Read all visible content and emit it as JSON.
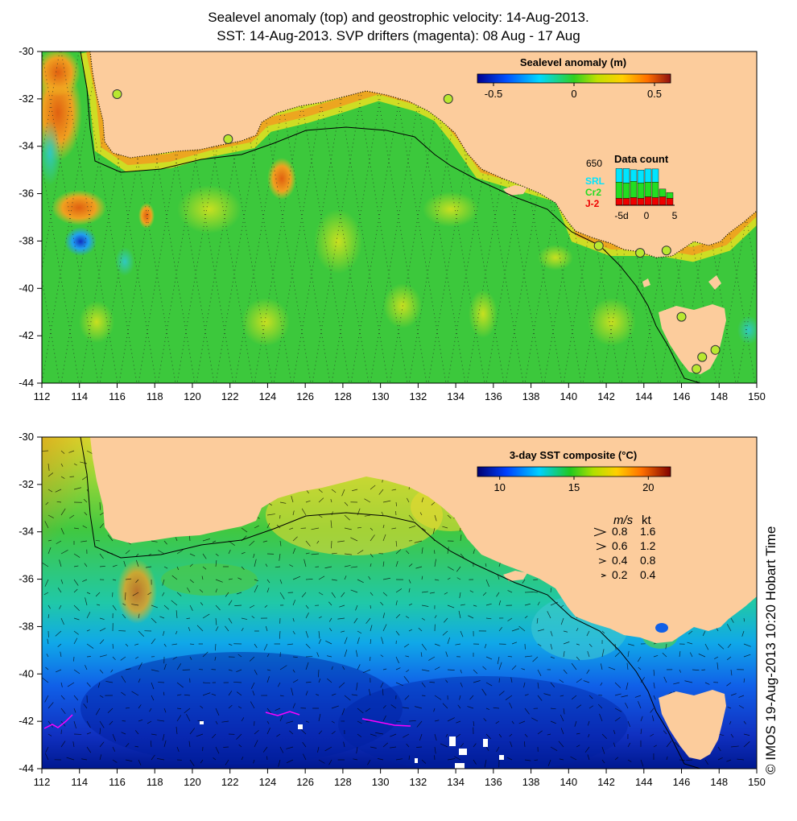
{
  "titles": {
    "line1": "Sealevel anomaly (top) and geostrophic velocity: 14-Aug-2013.",
    "line2": "SST: 14-Aug-2013. SVP drifters (magenta): 08 Aug - 17 Aug"
  },
  "axes": {
    "lon_ticks": [
      "112",
      "114",
      "116",
      "118",
      "120",
      "122",
      "124",
      "126",
      "128",
      "130",
      "132",
      "134",
      "136",
      "138",
      "140",
      "142",
      "144",
      "146",
      "148",
      "150"
    ],
    "lat_ticks": [
      "-30",
      "-32",
      "-34",
      "-36",
      "-38",
      "-40",
      "-42",
      "-44"
    ],
    "lon_range": [
      112,
      150
    ],
    "lat_range": [
      -44,
      -30
    ]
  },
  "top_panel": {
    "colorbar": {
      "title": "Sealevel anomaly (m)",
      "range": [
        -0.6,
        0.6
      ],
      "tick_labels": [
        "-0.5",
        "0",
        "0.5"
      ],
      "tick_values": [
        -0.5,
        0,
        0.5
      ]
    },
    "data_count": {
      "title": "Data count",
      "max_label": "650",
      "series": [
        {
          "name": "SRL",
          "color": "#00e5ff"
        },
        {
          "name": "Cr2",
          "color": "#22dd22"
        },
        {
          "name": "J-2",
          "color": "#ee0000"
        }
      ],
      "x_labels": [
        "-5d",
        "0",
        "5"
      ],
      "bars": [
        {
          "day": -4,
          "j2": 0.18,
          "cr2": 0.42,
          "srl": 0.35
        },
        {
          "day": -3,
          "j2": 0.18,
          "cr2": 0.4,
          "srl": 0.37
        },
        {
          "day": -2,
          "j2": 0.2,
          "cr2": 0.42,
          "srl": 0.3
        },
        {
          "day": -1,
          "j2": 0.18,
          "cr2": 0.4,
          "srl": 0.33
        },
        {
          "day": 0,
          "j2": 0.22,
          "cr2": 0.38,
          "srl": 0.34
        },
        {
          "day": 1,
          "j2": 0.2,
          "cr2": 0.4,
          "srl": 0.34
        },
        {
          "day": 2,
          "j2": 0.22,
          "cr2": 0.2,
          "srl": 0.0
        },
        {
          "day": 3,
          "j2": 0.18,
          "cr2": 0.15,
          "srl": 0.0
        }
      ]
    },
    "tide_gauges": [
      {
        "lon": 116.0,
        "lat": -31.8
      },
      {
        "lon": 121.9,
        "lat": -33.7
      },
      {
        "lon": 133.6,
        "lat": -32.0
      },
      {
        "lon": 141.6,
        "lat": -38.2
      },
      {
        "lon": 143.8,
        "lat": -38.5
      },
      {
        "lon": 145.2,
        "lat": -38.4
      },
      {
        "lon": 146.0,
        "lat": -41.2
      },
      {
        "lon": 147.1,
        "lat": -42.9
      },
      {
        "lon": 147.8,
        "lat": -42.6
      },
      {
        "lon": 146.8,
        "lat": -43.4
      }
    ]
  },
  "bottom_panel": {
    "colorbar": {
      "title": "3-day SST composite (°C)",
      "range": [
        8.5,
        21.5
      ],
      "tick_labels": [
        "10",
        "15",
        "20"
      ],
      "tick_values": [
        10,
        15,
        20
      ]
    },
    "velocity_key": {
      "header_ms": "m/s",
      "header_kt": "kt",
      "rows": [
        {
          "ms": "0.8",
          "kt": "1.6"
        },
        {
          "ms": "0.6",
          "kt": "1.2"
        },
        {
          "ms": "0.4",
          "kt": "0.8"
        },
        {
          "ms": "0.2",
          "kt": "0.4"
        }
      ]
    }
  },
  "stamp": "© IMOS 19-Aug-2013 10:20 Hobart Time",
  "colors": {
    "land": "#fccc9c",
    "drifter": "#ff00ff",
    "gauge": "#b8e830"
  }
}
